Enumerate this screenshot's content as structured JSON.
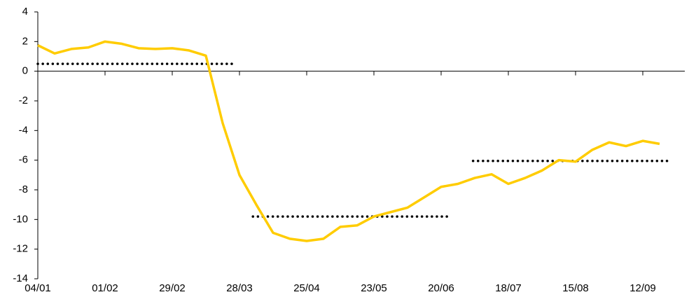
{
  "chart_data": {
    "type": "line",
    "categories": [
      "04/01",
      null,
      null,
      null,
      "01/02",
      null,
      null,
      null,
      "29/02",
      null,
      null,
      null,
      "28/03",
      null,
      null,
      null,
      "25/04",
      null,
      null,
      null,
      "23/05",
      null,
      null,
      null,
      "20/06",
      null,
      null,
      null,
      "18/07",
      null,
      null,
      null,
      "15/08",
      null,
      null,
      null,
      "12/09",
      null
    ],
    "values": [
      1.75,
      1.2,
      1.5,
      1.6,
      2.0,
      1.85,
      1.55,
      1.5,
      1.55,
      1.4,
      1.05,
      -3.5,
      -7.0,
      -9.0,
      -10.9,
      -11.3,
      -11.45,
      -11.3,
      -10.5,
      -10.4,
      -9.8,
      -9.5,
      -9.2,
      -8.5,
      -7.8,
      -7.6,
      -7.2,
      -6.95,
      -7.6,
      -7.2,
      -6.7,
      -6.0,
      -6.1,
      -5.3,
      -4.8,
      -5.05,
      -4.7,
      -4.9
    ],
    "color": "#ffcc00",
    "reference_lines": [
      {
        "value": 0.5,
        "x": [
          0,
          11.7
        ]
      },
      {
        "value": -9.8,
        "x": [
          12.8,
          24.6
        ]
      },
      {
        "value": -6.05,
        "x": [
          25.9,
          37.5
        ]
      }
    ],
    "reference_color": "#000000",
    "ylim": [
      -14,
      4
    ],
    "yticks": [
      -14,
      -12,
      -10,
      -8,
      -6,
      -4,
      -2,
      0,
      2,
      4
    ],
    "grid": false
  }
}
